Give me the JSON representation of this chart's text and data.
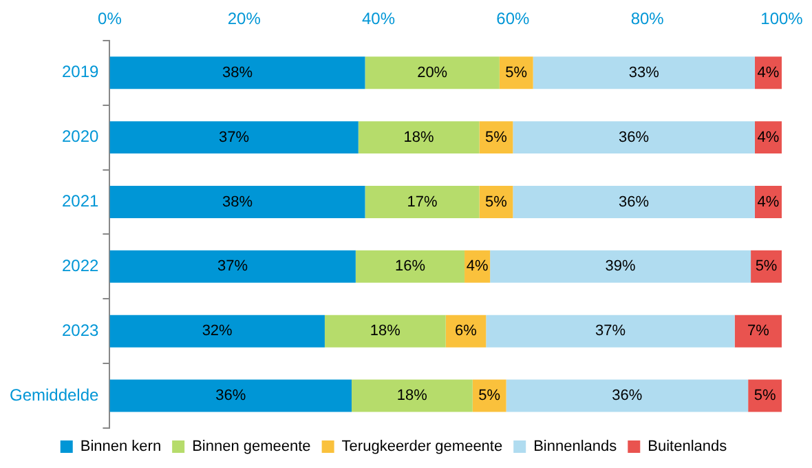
{
  "chart_data": {
    "type": "bar",
    "orientation": "horizontal",
    "stacked": true,
    "categories": [
      "2019",
      "2020",
      "2021",
      "2022",
      "2023",
      "Gemiddelde"
    ],
    "series": [
      {
        "name": "Binnen kern",
        "color": "#0096d6",
        "values": [
          38,
          37,
          38,
          36.6,
          32,
          36
        ],
        "value_labels": [
          "38%",
          "37%",
          "38%",
          "37%",
          "32%",
          "36%"
        ]
      },
      {
        "name": "Binnen gemeente",
        "color": "#b6dc6b",
        "values": [
          20,
          18,
          17,
          16.2,
          18,
          18
        ],
        "value_labels": [
          "20%",
          "18%",
          "17%",
          "16%",
          "18%",
          "18%"
        ]
      },
      {
        "name": "Terugkeerder gemeente",
        "color": "#fac13c",
        "values": [
          5,
          5,
          5,
          3.8,
          6,
          5
        ],
        "value_labels": [
          "5%",
          "5%",
          "5%",
          "4%",
          "6%",
          "5%"
        ]
      },
      {
        "name": "Binnenlands",
        "color": "#b0dcf0",
        "values": [
          33,
          36,
          36,
          38.8,
          37,
          36
        ],
        "value_labels": [
          "33%",
          "36%",
          "36%",
          "39%",
          "37%",
          "36%"
        ]
      },
      {
        "name": "Buitenlands",
        "color": "#e9534f",
        "values": [
          4,
          4,
          4,
          4.6,
          7,
          5
        ],
        "value_labels": [
          "4%",
          "4%",
          "4%",
          "5%",
          "7%",
          "5%"
        ]
      }
    ],
    "xlim": [
      0,
      100
    ],
    "xticks": [
      {
        "value": 0,
        "label": "0%"
      },
      {
        "value": 20,
        "label": "20%"
      },
      {
        "value": 40,
        "label": "40%"
      },
      {
        "value": 60,
        "label": "60%"
      },
      {
        "value": 80,
        "label": "80%"
      },
      {
        "value": 100,
        "label": "100%"
      }
    ],
    "grid": false,
    "legend": "bottom"
  }
}
